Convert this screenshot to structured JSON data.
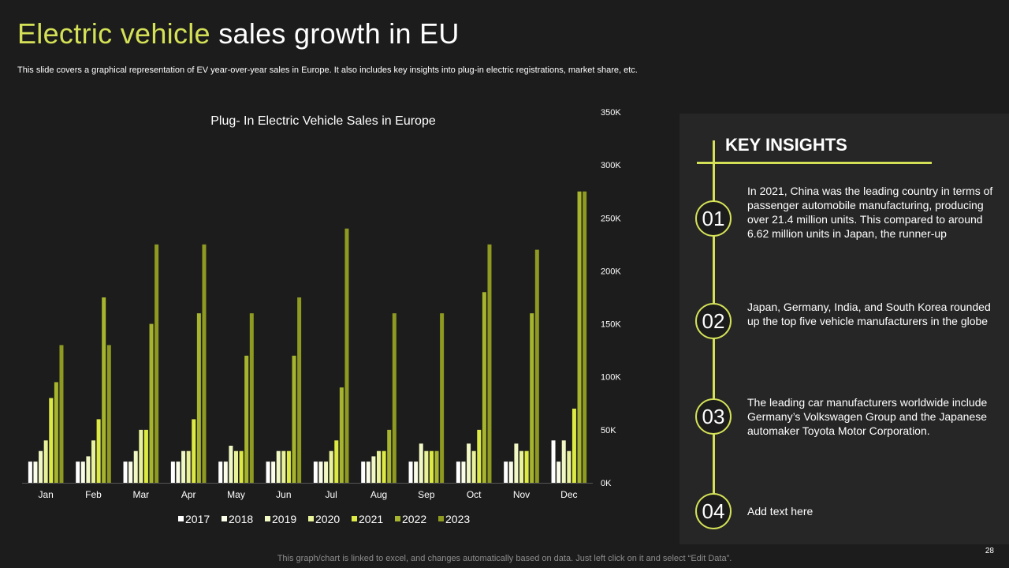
{
  "header": {
    "title_accent": "Electric vehicle",
    "title_rest": " sales growth in EU",
    "subtitle": "This slide covers a graphical representation of EV year-over-year sales in Europe. It also includes key insights into plug-in electric registrations, market share, etc."
  },
  "chart_data": {
    "type": "bar",
    "title": "Plug- In Electric Vehicle Sales in Europe",
    "categories": [
      "Jan",
      "Feb",
      "Mar",
      "Apr",
      "May",
      "Jun",
      "Jul",
      "Aug",
      "Sep",
      "Oct",
      "Nov",
      "Dec"
    ],
    "series": [
      {
        "name": "2017",
        "color": "#ffffff",
        "values": [
          20000,
          20000,
          20000,
          20000,
          20000,
          20000,
          20000,
          20000,
          20000,
          20000,
          20000,
          40000
        ]
      },
      {
        "name": "2018",
        "color": "#fbfde8",
        "values": [
          20000,
          20000,
          20000,
          20000,
          20000,
          20000,
          20000,
          20000,
          20000,
          20000,
          20000,
          20000
        ]
      },
      {
        "name": "2019",
        "color": "#f2f8c4",
        "values": [
          30000,
          25000,
          30000,
          30000,
          35000,
          30000,
          20000,
          25000,
          37000,
          37000,
          37000,
          40000
        ]
      },
      {
        "name": "2020",
        "color": "#e9f29a",
        "values": [
          40000,
          40000,
          50000,
          30000,
          30000,
          30000,
          30000,
          30000,
          30000,
          30000,
          30000,
          30000
        ]
      },
      {
        "name": "2021",
        "color": "#deea44",
        "values": [
          80000,
          60000,
          50000,
          60000,
          30000,
          30000,
          40000,
          30000,
          30000,
          50000,
          30000,
          70000
        ]
      },
      {
        "name": "2022",
        "color": "#a7b52e",
        "values": [
          95000,
          175000,
          150000,
          160000,
          120000,
          120000,
          90000,
          50000,
          30000,
          180000,
          160000,
          275000
        ]
      },
      {
        "name": "2023",
        "color": "#8e9a20",
        "values": [
          130000,
          130000,
          225000,
          225000,
          160000,
          175000,
          240000,
          160000,
          160000,
          225000,
          220000,
          275000
        ]
      }
    ],
    "y_ticks": [
      "0K",
      "50K",
      "100K",
      "150K",
      "200K",
      "250K",
      "300K",
      "350K"
    ],
    "ylim": [
      0,
      350000
    ],
    "legend_position": "bottom"
  },
  "insights": {
    "title": "KEY INSIGHTS",
    "items": [
      {
        "num": "01",
        "text": "In 2021, China was the leading country in terms of passenger automobile manufacturing, producing over 21.4 million units. This compared to around 6.62 million units in Japan, the runner-up"
      },
      {
        "num": "02",
        "text": "Japan, Germany, India, and South Korea rounded up the top five vehicle manufacturers in the globe"
      },
      {
        "num": "03",
        "text": "The leading car manufacturers worldwide include Germany’s Volkswagen Group and the Japanese automaker Toyota Motor Corporation."
      },
      {
        "num": "04",
        "text": "Add text here"
      }
    ]
  },
  "footer": {
    "note": "This graph/chart is linked to excel,  and changes automatically based on data. Just left click on it and select “Edit Data”.",
    "page_number": "28"
  }
}
